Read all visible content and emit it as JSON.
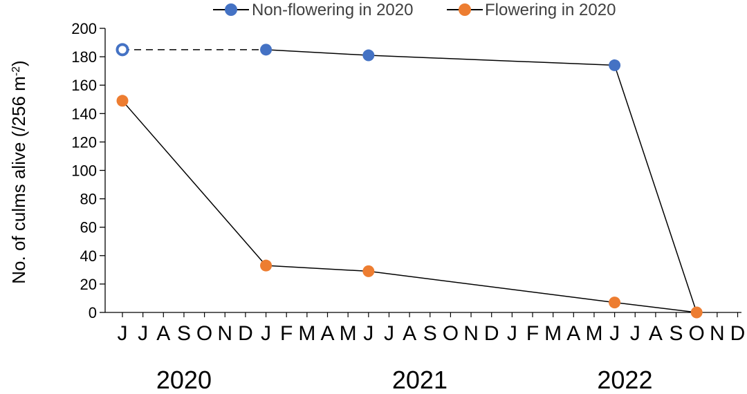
{
  "chart_data": {
    "type": "line",
    "ylabel": "No. of culms alive (/256 m",
    "ylabel_sup": "-2",
    "ylabel_end": ")",
    "ylim": [
      0,
      200
    ],
    "yticks": [
      0,
      20,
      40,
      60,
      80,
      100,
      120,
      140,
      160,
      180,
      200
    ],
    "x_month_labels": [
      "J",
      "J",
      "A",
      "S",
      "O",
      "N",
      "D",
      "J",
      "F",
      "M",
      "A",
      "M",
      "J",
      "J",
      "A",
      "S",
      "O",
      "N",
      "D",
      "J",
      "F",
      "M",
      "A",
      "M",
      "J",
      "J",
      "A",
      "S",
      "O",
      "N",
      "D"
    ],
    "x_year_labels": [
      {
        "label": "2020",
        "month_index": 3
      },
      {
        "label": "2021",
        "month_index": 14.5
      },
      {
        "label": "2022",
        "month_index": 24.5
      }
    ],
    "legend_position": "top",
    "series": [
      {
        "name": "Non-flowering in 2020",
        "color": "#4472C4",
        "points": [
          {
            "month_index": 0,
            "value": 185,
            "marker": "open"
          },
          {
            "month_index": 7,
            "value": 185,
            "marker": "filled"
          },
          {
            "month_index": 12,
            "value": 181,
            "marker": "filled"
          },
          {
            "month_index": 24,
            "value": 174,
            "marker": "filled"
          },
          {
            "month_index": 28,
            "value": 0,
            "marker": "none"
          }
        ],
        "dashed_segments": [
          0
        ]
      },
      {
        "name": "Flowering in 2020",
        "color": "#ED7D31",
        "points": [
          {
            "month_index": 0,
            "value": 149,
            "marker": "filled"
          },
          {
            "month_index": 7,
            "value": 33,
            "marker": "filled"
          },
          {
            "month_index": 12,
            "value": 29,
            "marker": "filled"
          },
          {
            "month_index": 24,
            "value": 7,
            "marker": "filled"
          },
          {
            "month_index": 28,
            "value": 0,
            "marker": "filled"
          }
        ],
        "dashed_segments": []
      }
    ]
  }
}
